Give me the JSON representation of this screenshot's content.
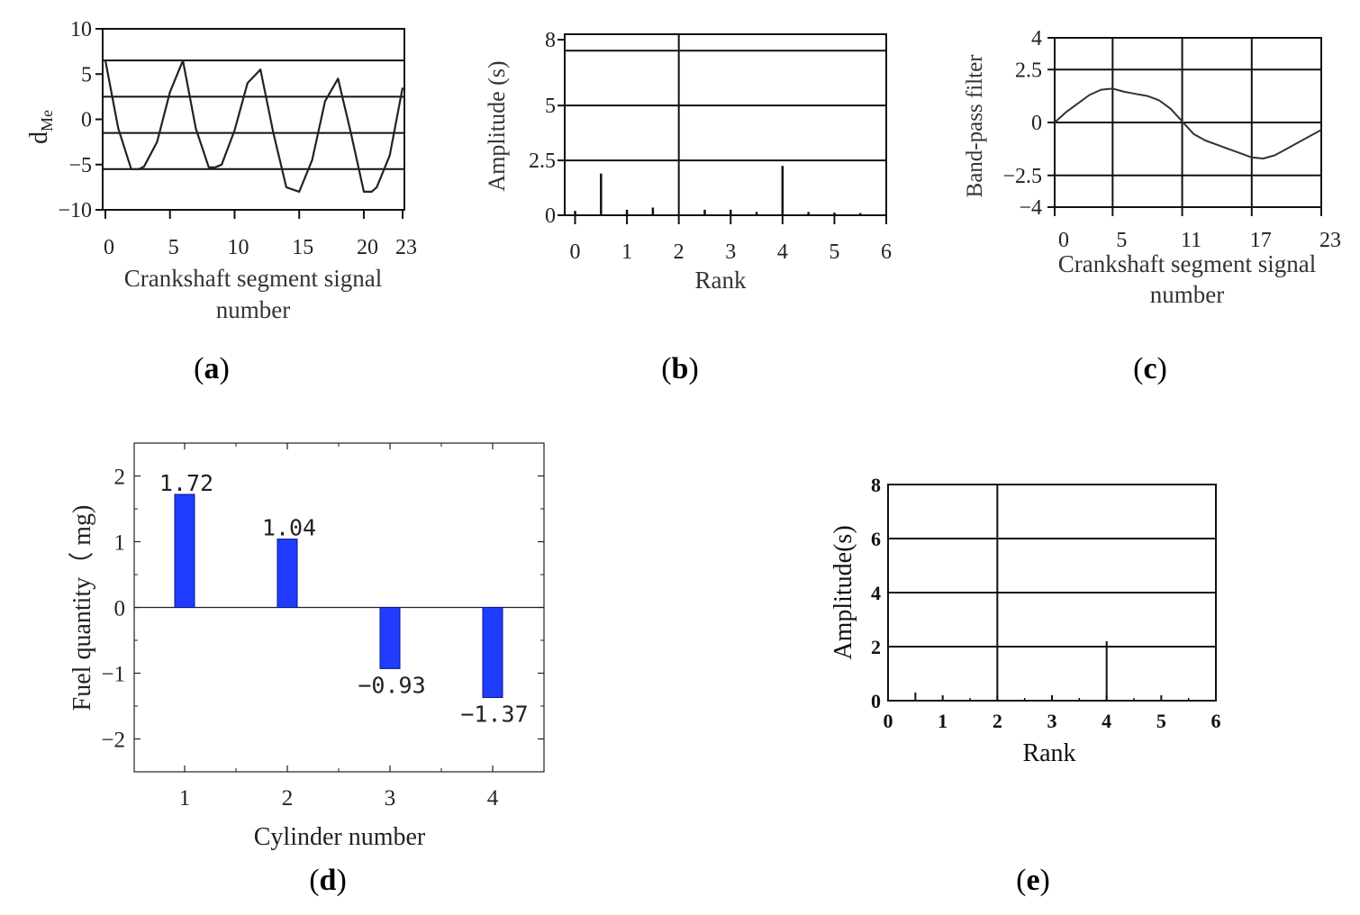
{
  "chart_data": [
    {
      "id": "a",
      "type": "line",
      "caption": {
        "letter": "a",
        "open": "(",
        "close": ")"
      },
      "ylabel": "d",
      "ylabel_sub": "Me",
      "xlabel_line1": "Crankshaft segment signal",
      "xlabel_line2": "number",
      "xlim": [
        0,
        23
      ],
      "ylim": [
        -10,
        10
      ],
      "xticks": [
        0,
        5,
        10,
        15,
        20,
        23
      ],
      "ytick_labels": [
        "10",
        "5",
        "0",
        "−5",
        "−10"
      ],
      "ytick_values": [
        10,
        5,
        0,
        -5,
        -10
      ],
      "grid_y": [
        6.5,
        2.5,
        -1.5,
        -5.5
      ],
      "x": [
        0,
        1,
        2,
        2.6,
        3,
        4,
        5,
        6,
        7,
        8,
        8.5,
        9,
        10,
        11,
        12,
        13,
        14,
        15,
        16,
        17,
        18,
        19,
        20,
        20.6,
        21,
        22,
        23
      ],
      "y": [
        6.5,
        -1,
        -5.5,
        -5.5,
        -5.2,
        -2.5,
        3,
        6.5,
        -1,
        -5.3,
        -5.3,
        -5,
        -1.2,
        4,
        5.5,
        -1.5,
        -7.5,
        -8,
        -4.5,
        2,
        4.5,
        -1.5,
        -8,
        -8,
        -7.5,
        -4,
        3.5
      ]
    },
    {
      "id": "b",
      "type": "bar",
      "caption": {
        "letter": "b",
        "open": "(",
        "close": ")"
      },
      "ylabel": "Amplitude (s)",
      "xlabel": "Rank",
      "xlim": [
        -0.2,
        6
      ],
      "ylim": [
        0,
        8.25
      ],
      "xticks": [
        0,
        1,
        2,
        3,
        4,
        5,
        6
      ],
      "ytick_labels": [
        "8",
        "5",
        "2.5",
        "0"
      ],
      "ytick_values": [
        8,
        5,
        2.5,
        0
      ],
      "grid_y": [
        7.5,
        5,
        2.5
      ],
      "grid_x": [
        2
      ],
      "x": [
        0,
        0.5,
        1,
        1.5,
        2.5,
        3,
        3.5,
        4,
        4.5,
        5,
        5.5
      ],
      "values": [
        0.2,
        1.9,
        0.25,
        0.35,
        0.25,
        0.25,
        0.15,
        2.25,
        0.15,
        0.12,
        0.1
      ]
    },
    {
      "id": "c",
      "type": "line",
      "caption": {
        "letter": "c",
        "open": "(",
        "close": ")"
      },
      "ylabel": "Band-pass filter",
      "xlabel_line1": "Crankshaft segment signal",
      "xlabel_line2": "number",
      "xlim": [
        0,
        23
      ],
      "ylim": [
        -4,
        4
      ],
      "xticks": [
        0,
        5,
        11,
        17,
        23
      ],
      "ytick_labels": [
        "4",
        "2.5",
        "0",
        "−2.5",
        "−4"
      ],
      "ytick_values": [
        4,
        2.5,
        0,
        -2.5,
        -4
      ],
      "grid_y": [
        2.5,
        0,
        -2.5
      ],
      "grid_x": [
        5,
        11,
        17
      ],
      "x": [
        0,
        1,
        2,
        3,
        4,
        5,
        6,
        7,
        8,
        9,
        10,
        11,
        12,
        13,
        14,
        15,
        16,
        17,
        18,
        19,
        20,
        21,
        22,
        23
      ],
      "y": [
        0,
        0.5,
        0.9,
        1.3,
        1.55,
        1.6,
        1.45,
        1.35,
        1.25,
        1.05,
        0.65,
        0.05,
        -0.55,
        -0.85,
        -1.05,
        -1.25,
        -1.45,
        -1.65,
        -1.7,
        -1.55,
        -1.25,
        -0.95,
        -0.65,
        -0.35
      ]
    },
    {
      "id": "d",
      "type": "bar",
      "caption": {
        "letter": "d",
        "open": "(",
        "close": ")"
      },
      "ylabel": "Fuel quantity（ mg)",
      "xlabel": "Cylinder number",
      "categories": [
        "1",
        "2",
        "3",
        "4"
      ],
      "values": [
        1.72,
        1.04,
        -0.93,
        -1.37
      ],
      "value_labels": [
        "1.72",
        "1.04",
        "−0.93",
        "−1.37"
      ],
      "ylim": [
        -2.5,
        2.5
      ],
      "ytick_labels": [
        "2",
        "1",
        "0",
        "−1",
        "−2"
      ],
      "ytick_values": [
        2,
        1,
        0,
        -1,
        -2
      ],
      "bar_color": "#1f3cff"
    },
    {
      "id": "e",
      "type": "bar",
      "caption": {
        "letter": "e",
        "open": "(",
        "close": ")"
      },
      "ylabel": "Amplitude(s)",
      "xlabel": "Rank",
      "xlim": [
        0,
        6
      ],
      "ylim": [
        0,
        8
      ],
      "xticks": [
        0,
        1,
        2,
        3,
        4,
        5,
        6
      ],
      "ytick_labels": [
        "8",
        "6",
        "4",
        "2",
        "0"
      ],
      "ytick_values": [
        8,
        6,
        4,
        2,
        0
      ],
      "grid_y": [
        6,
        4,
        2
      ],
      "grid_x": [
        2
      ],
      "x": [
        0.5,
        4
      ],
      "values": [
        0.3,
        2.2
      ]
    }
  ]
}
